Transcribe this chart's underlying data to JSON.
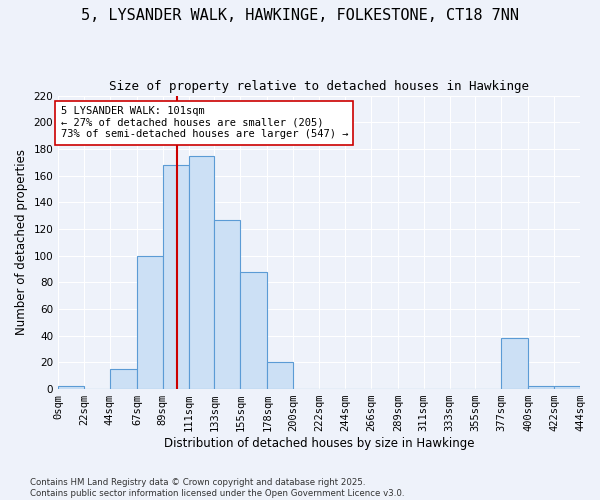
{
  "title_line1": "5, LYSANDER WALK, HAWKINGE, FOLKESTONE, CT18 7NN",
  "title_line2": "Size of property relative to detached houses in Hawkinge",
  "xlabel": "Distribution of detached houses by size in Hawkinge",
  "ylabel": "Number of detached properties",
  "bin_edges": [
    0,
    22,
    44,
    67,
    89,
    111,
    133,
    155,
    178,
    200,
    222,
    244,
    266,
    289,
    311,
    333,
    355,
    377,
    400,
    422,
    444
  ],
  "bar_heights": [
    2,
    0,
    15,
    100,
    168,
    175,
    127,
    88,
    20,
    0,
    0,
    0,
    0,
    0,
    0,
    0,
    0,
    38,
    2,
    2
  ],
  "bar_facecolor": "#cce0f5",
  "bar_edgecolor": "#5b9bd5",
  "red_line_x": 101,
  "red_line_color": "#cc0000",
  "annotation_text": "5 LYSANDER WALK: 101sqm\n← 27% of detached houses are smaller (205)\n73% of semi-detached houses are larger (547) →",
  "annotation_box_edgecolor": "#cc0000",
  "annotation_box_facecolor": "#ffffff",
  "ylim": [
    0,
    220
  ],
  "yticks": [
    0,
    20,
    40,
    60,
    80,
    100,
    120,
    140,
    160,
    180,
    200,
    220
  ],
  "background_color": "#eef2fa",
  "grid_color": "#ffffff",
  "footer_line1": "Contains HM Land Registry data © Crown copyright and database right 2025.",
  "footer_line2": "Contains public sector information licensed under the Open Government Licence v3.0.",
  "title_fontsize": 11,
  "subtitle_fontsize": 9,
  "axis_label_fontsize": 8.5,
  "tick_fontsize": 7.5,
  "annotation_fontsize": 7.5
}
